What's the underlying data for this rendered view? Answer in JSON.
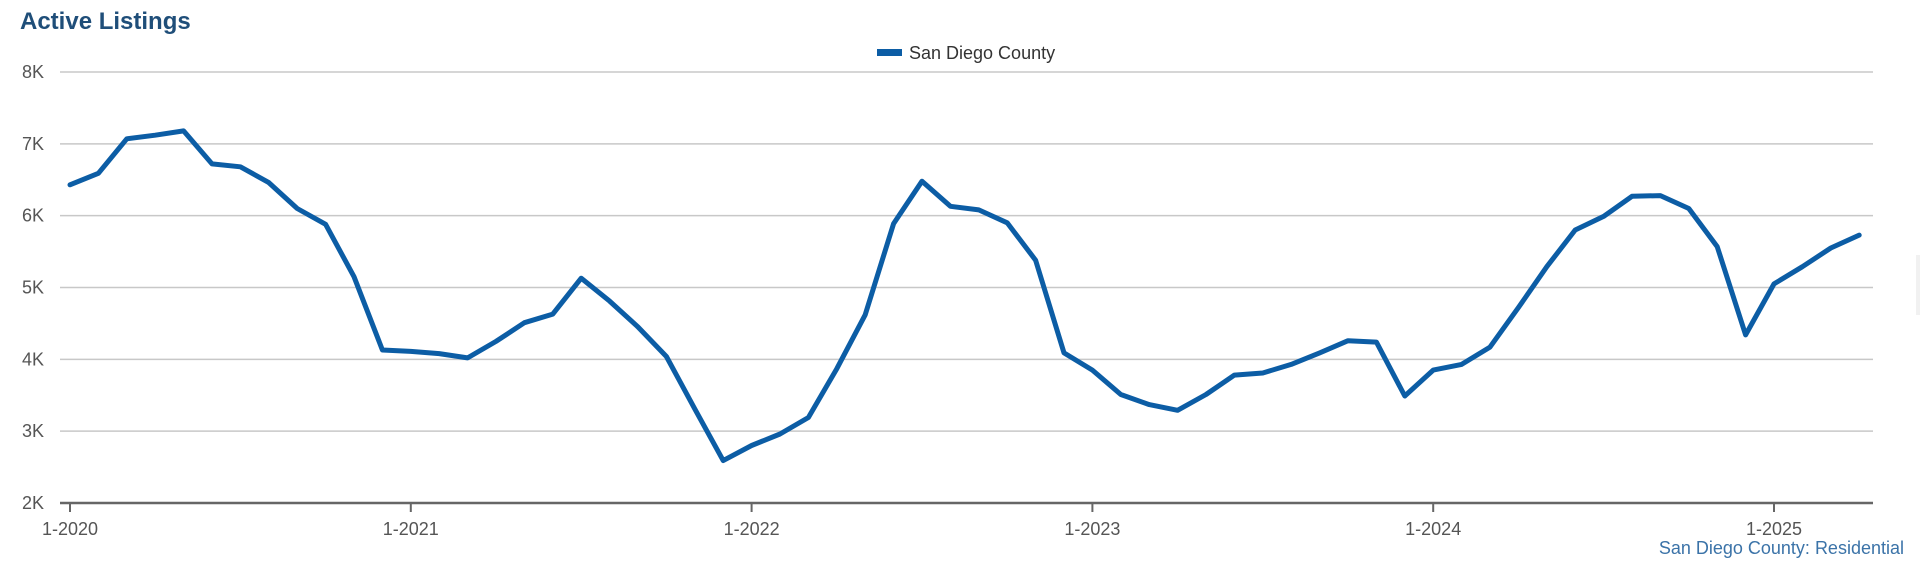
{
  "title": "Active Listings",
  "source_note": "San Diego County: Residential",
  "colors": {
    "series": "#0c5da5",
    "grid": "#c8c8c8",
    "axis": "#666666",
    "tick_text": "#555555",
    "title": "#1f4e79",
    "note": "#3b73a8"
  },
  "chart_data": {
    "type": "line",
    "title": "Active Listings",
    "xlabel": "",
    "ylabel": "",
    "x_tick_labels": [
      "1-2020",
      "1-2021",
      "1-2022",
      "1-2023",
      "1-2024",
      "1-2025"
    ],
    "y_ticks": [
      2000,
      3000,
      4000,
      5000,
      6000,
      7000,
      8000
    ],
    "y_tick_labels": [
      "2K",
      "3K",
      "4K",
      "5K",
      "6K",
      "7K",
      "8K"
    ],
    "ylim": [
      2000,
      8000
    ],
    "xlim": [
      "2020-01",
      "2025-04"
    ],
    "grid": true,
    "legend_position": "top-center",
    "x": [
      "2020-01",
      "2020-02",
      "2020-03",
      "2020-04",
      "2020-05",
      "2020-06",
      "2020-07",
      "2020-08",
      "2020-09",
      "2020-10",
      "2020-11",
      "2020-12",
      "2021-01",
      "2021-02",
      "2021-03",
      "2021-04",
      "2021-05",
      "2021-06",
      "2021-07",
      "2021-08",
      "2021-09",
      "2021-10",
      "2021-11",
      "2021-12",
      "2022-01",
      "2022-02",
      "2022-03",
      "2022-04",
      "2022-05",
      "2022-06",
      "2022-07",
      "2022-08",
      "2022-09",
      "2022-10",
      "2022-11",
      "2022-12",
      "2023-01",
      "2023-02",
      "2023-03",
      "2023-04",
      "2023-05",
      "2023-06",
      "2023-07",
      "2023-08",
      "2023-09",
      "2023-10",
      "2023-11",
      "2023-12",
      "2024-01",
      "2024-02",
      "2024-03",
      "2024-04",
      "2024-05",
      "2024-06",
      "2024-07",
      "2024-08",
      "2024-09",
      "2024-10",
      "2024-11",
      "2024-12",
      "2025-01",
      "2025-02",
      "2025-03",
      "2025-04"
    ],
    "series": [
      {
        "name": "San Diego County",
        "color": "#0c5da5",
        "values": [
          6430,
          6590,
          7070,
          7120,
          7180,
          6720,
          6680,
          6460,
          6100,
          5880,
          5150,
          4130,
          4110,
          4080,
          4020,
          4250,
          4510,
          4630,
          5130,
          4810,
          4450,
          4040,
          3310,
          2590,
          2800,
          2960,
          3190,
          3870,
          4620,
          5890,
          6480,
          6130,
          6080,
          5900,
          5380,
          4090,
          3850,
          3510,
          3370,
          3290,
          3510,
          3780,
          3810,
          3930,
          4090,
          4260,
          4240,
          3490,
          3850,
          3930,
          4170,
          4720,
          5290,
          5800,
          5990,
          6270,
          6280,
          6100,
          5570,
          4340,
          5050,
          5290,
          5550,
          5730
        ]
      }
    ]
  }
}
